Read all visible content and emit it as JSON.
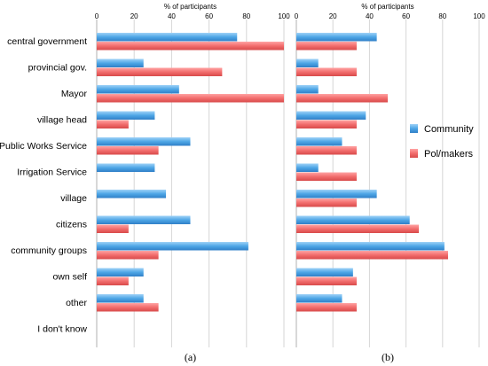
{
  "chart_data": {
    "type": "bar",
    "orientation": "horizontal",
    "categories": [
      "central government",
      "provincial gov.",
      "Mayor",
      "village head",
      "Public Works Service",
      "Irrigation Service",
      "village",
      "citizens",
      "community groups",
      "own self",
      "other",
      "I don't know"
    ],
    "xlabel": "% of participants",
    "xlim": [
      0,
      100
    ],
    "xticks": [
      0,
      20,
      40,
      60,
      80,
      100
    ],
    "grid": true,
    "legend": {
      "position": "right",
      "entries": [
        "Community",
        "Pol/makers"
      ]
    },
    "colors": {
      "Community": "#5aaee8",
      "Pol/makers": "#f26d6d"
    },
    "panels": [
      {
        "label": "(a)",
        "series": [
          {
            "name": "Community",
            "values": [
              75,
              25,
              44,
              31,
              50,
              31,
              37,
              50,
              81,
              25,
              25,
              0
            ]
          },
          {
            "name": "Pol/makers",
            "values": [
              100,
              67,
              100,
              17,
              33,
              0,
              0,
              17,
              33,
              17,
              33,
              0
            ]
          }
        ]
      },
      {
        "label": "(b)",
        "series": [
          {
            "name": "Community",
            "values": [
              44,
              12,
              12,
              38,
              25,
              12,
              44,
              62,
              81,
              31,
              25,
              0
            ]
          },
          {
            "name": "Pol/makers",
            "values": [
              33,
              33,
              50,
              33,
              33,
              33,
              33,
              67,
              83,
              33,
              33,
              0
            ]
          }
        ]
      }
    ]
  }
}
